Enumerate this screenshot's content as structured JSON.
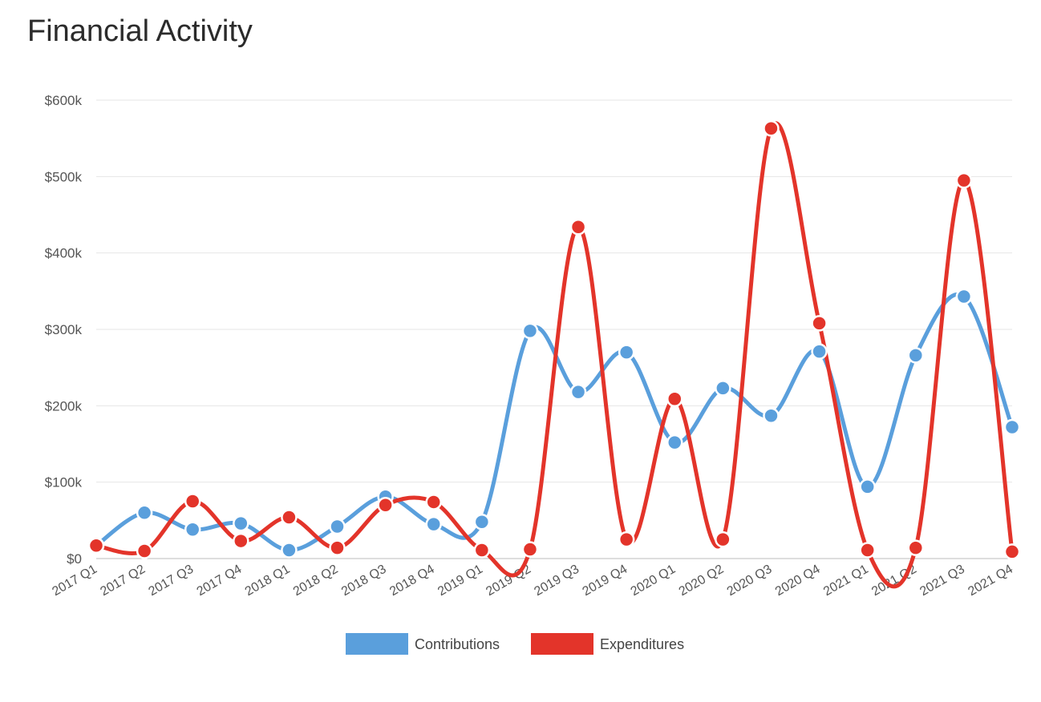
{
  "page": {
    "title": "Financial Activity"
  },
  "chart_data": {
    "type": "line",
    "title": "Financial Activity",
    "xlabel": "",
    "ylabel": "",
    "ylim": [
      0,
      600000
    ],
    "y_ticks": [
      0,
      100000,
      200000,
      300000,
      400000,
      500000,
      600000
    ],
    "y_tick_labels": [
      "$0",
      "$100k",
      "$200k",
      "$300k",
      "$400k",
      "$500k",
      "$600k"
    ],
    "grid": true,
    "legend_position": "bottom-center",
    "categories": [
      "2017 Q1",
      "2017 Q2",
      "2017 Q3",
      "2017 Q4",
      "2018 Q1",
      "2018 Q2",
      "2018 Q3",
      "2018 Q4",
      "2019 Q1",
      "2019 Q2",
      "2019 Q3",
      "2019 Q4",
      "2020 Q1",
      "2020 Q2",
      "2020 Q3",
      "2020 Q4",
      "2021 Q1",
      "2021 Q2",
      "2021 Q3",
      "2021 Q4"
    ],
    "series": [
      {
        "name": "Contributions",
        "color": "#5a9fdc",
        "values": [
          17000,
          60000,
          38000,
          46000,
          11000,
          42000,
          81000,
          45000,
          48000,
          298000,
          218000,
          270000,
          152000,
          223000,
          187000,
          271000,
          94000,
          266000,
          343000,
          172000
        ]
      },
      {
        "name": "Expenditures",
        "color": "#e3342a",
        "values": [
          17000,
          10000,
          75000,
          23000,
          54000,
          14000,
          70000,
          74000,
          11000,
          12000,
          434000,
          25000,
          209000,
          25000,
          563000,
          308000,
          11000,
          14000,
          495000,
          9000
        ]
      }
    ]
  }
}
